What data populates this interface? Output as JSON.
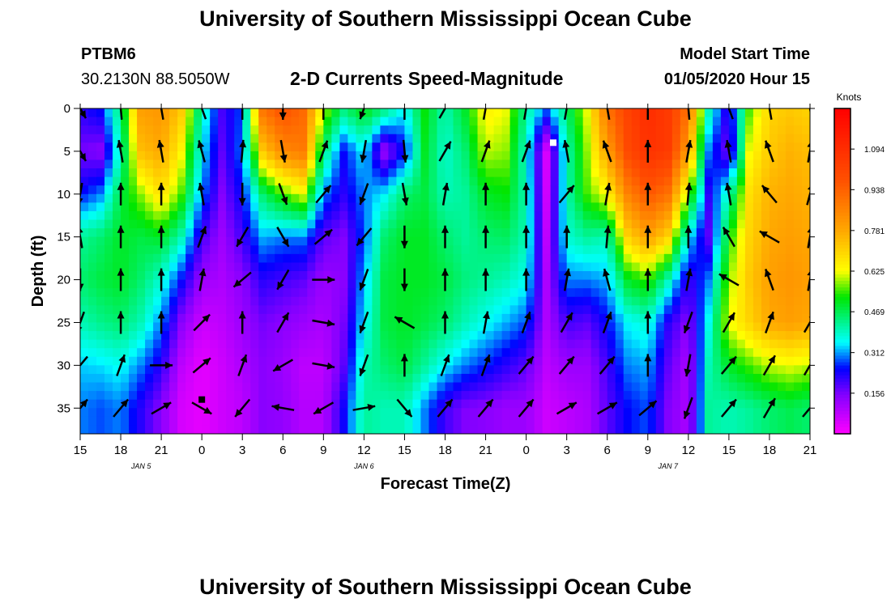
{
  "title_top": "University of Southern Mississippi Ocean Cube",
  "title_bottom": "University of Southern Mississippi Ocean Cube",
  "station": {
    "name": "PTBM6",
    "coords": "30.2130N 88.5050W"
  },
  "subtitle": "2-D Currents Speed-Magnitude",
  "model": {
    "label": "Model Start Time",
    "value": "01/05/2020 Hour 15"
  },
  "chart_data": {
    "type": "heatmap",
    "title": "2-D Currents Speed-Magnitude",
    "xlabel": "Forecast Time(Z)",
    "ylabel": "Depth (ft)",
    "x_hours": [
      0,
      54
    ],
    "x_tick_labels": [
      "15",
      "18",
      "21",
      "0",
      "3",
      "6",
      "9",
      "12",
      "15",
      "18",
      "21",
      "0",
      "3",
      "6",
      "9",
      "12",
      "15",
      "18",
      "21"
    ],
    "day_labels": [
      {
        "hour": 4.5,
        "text": "JAN 5"
      },
      {
        "hour": 21,
        "text": "JAN 6"
      },
      {
        "hour": 43.5,
        "text": "JAN 7"
      }
    ],
    "y_ticks": [
      0,
      5,
      10,
      15,
      20,
      25,
      30,
      35
    ],
    "ylim": [
      0,
      38
    ],
    "y_inverted": true,
    "colorbar": {
      "unit": "Knots",
      "ticks": [
        "1.094",
        "0.938",
        "0.781",
        "0.625",
        "0.469",
        "0.312",
        "0.156"
      ],
      "range": [
        0,
        1.25
      ]
    },
    "speed_columns": {
      "hours": [
        0,
        1.5,
        3,
        4.5,
        6,
        7.5,
        9,
        10.5,
        12,
        13.5,
        15,
        16.5,
        18,
        19.5,
        21,
        22.5,
        24,
        25.5,
        27,
        28.5,
        30,
        31.5,
        33,
        34.5,
        36,
        37.5,
        39,
        40.5,
        42,
        43.5,
        45,
        46.5,
        48,
        49.5,
        51,
        52.5,
        54
      ],
      "depths": [
        0,
        5,
        10,
        15,
        20,
        25,
        30,
        35,
        38
      ],
      "speed_knots": [
        [
          0.22,
          0.16,
          0.25,
          0.42,
          0.45,
          0.4,
          0.33,
          0.3,
          0.3
        ],
        [
          0.26,
          0.14,
          0.3,
          0.45,
          0.48,
          0.43,
          0.34,
          0.28,
          0.28
        ],
        [
          0.45,
          0.4,
          0.48,
          0.5,
          0.5,
          0.45,
          0.36,
          0.3,
          0.3
        ],
        [
          0.8,
          0.74,
          0.58,
          0.48,
          0.45,
          0.4,
          0.3,
          0.22,
          0.22
        ],
        [
          0.82,
          0.78,
          0.68,
          0.5,
          0.38,
          0.3,
          0.22,
          0.14,
          0.14
        ],
        [
          0.72,
          0.64,
          0.55,
          0.4,
          0.25,
          0.14,
          0.08,
          0.05,
          0.05
        ],
        [
          0.4,
          0.35,
          0.3,
          0.2,
          0.12,
          0.06,
          0.03,
          0.03,
          0.03
        ],
        [
          0.2,
          0.18,
          0.15,
          0.12,
          0.1,
          0.08,
          0.06,
          0.06,
          0.06
        ],
        [
          0.28,
          0.3,
          0.25,
          0.2,
          0.14,
          0.12,
          0.1,
          0.08,
          0.08
        ],
        [
          0.9,
          0.72,
          0.45,
          0.32,
          0.22,
          0.16,
          0.14,
          0.14,
          0.14
        ],
        [
          0.98,
          0.85,
          0.55,
          0.3,
          0.2,
          0.14,
          0.12,
          0.13,
          0.13
        ],
        [
          0.92,
          0.88,
          0.62,
          0.3,
          0.18,
          0.12,
          0.08,
          0.09,
          0.09
        ],
        [
          0.6,
          0.45,
          0.3,
          0.18,
          0.12,
          0.1,
          0.08,
          0.09,
          0.09
        ],
        [
          0.45,
          0.25,
          0.22,
          0.15,
          0.14,
          0.16,
          0.18,
          0.24,
          0.24
        ],
        [
          0.52,
          0.35,
          0.3,
          0.28,
          0.32,
          0.35,
          0.4,
          0.42,
          0.42
        ],
        [
          0.45,
          0.12,
          0.35,
          0.45,
          0.48,
          0.48,
          0.45,
          0.4,
          0.4
        ],
        [
          0.35,
          0.25,
          0.45,
          0.5,
          0.5,
          0.5,
          0.48,
          0.4,
          0.4
        ],
        [
          0.52,
          0.5,
          0.48,
          0.5,
          0.5,
          0.48,
          0.42,
          0.3,
          0.3
        ],
        [
          0.4,
          0.38,
          0.4,
          0.45,
          0.48,
          0.45,
          0.35,
          0.2,
          0.2
        ],
        [
          0.5,
          0.45,
          0.42,
          0.42,
          0.44,
          0.4,
          0.3,
          0.15,
          0.15
        ],
        [
          0.65,
          0.6,
          0.5,
          0.45,
          0.42,
          0.36,
          0.26,
          0.14,
          0.14
        ],
        [
          0.62,
          0.58,
          0.52,
          0.46,
          0.4,
          0.32,
          0.22,
          0.12,
          0.12
        ],
        [
          0.42,
          0.38,
          0.4,
          0.4,
          0.36,
          0.28,
          0.18,
          0.12,
          0.12
        ],
        [
          0.3,
          0.05,
          0.06,
          0.08,
          0.1,
          0.1,
          0.08,
          0.06,
          0.06
        ],
        [
          0.45,
          0.4,
          0.4,
          0.38,
          0.3,
          0.2,
          0.12,
          0.08,
          0.08
        ],
        [
          0.62,
          0.58,
          0.55,
          0.42,
          0.3,
          0.18,
          0.12,
          0.1,
          0.1
        ],
        [
          0.9,
          0.8,
          0.64,
          0.4,
          0.32,
          0.25,
          0.2,
          0.18,
          0.18
        ],
        [
          1.02,
          1.0,
          0.86,
          0.7,
          0.5,
          0.35,
          0.3,
          0.25,
          0.25
        ],
        [
          1.1,
          1.08,
          0.96,
          0.8,
          0.55,
          0.38,
          0.32,
          0.28,
          0.28
        ],
        [
          1.05,
          1.05,
          0.9,
          0.7,
          0.4,
          0.22,
          0.18,
          0.15,
          0.15
        ],
        [
          0.9,
          0.8,
          0.58,
          0.35,
          0.2,
          0.14,
          0.1,
          0.1,
          0.1
        ],
        [
          0.4,
          0.3,
          0.22,
          0.18,
          0.3,
          0.36,
          0.4,
          0.42,
          0.42
        ],
        [
          0.2,
          0.15,
          0.4,
          0.52,
          0.58,
          0.62,
          0.5,
          0.4,
          0.4
        ],
        [
          0.55,
          0.62,
          0.68,
          0.7,
          0.72,
          0.7,
          0.55,
          0.42,
          0.42
        ],
        [
          0.7,
          0.72,
          0.76,
          0.78,
          0.8,
          0.78,
          0.6,
          0.45,
          0.45
        ],
        [
          0.72,
          0.76,
          0.78,
          0.8,
          0.82,
          0.8,
          0.62,
          0.47,
          0.47
        ],
        [
          0.7,
          0.74,
          0.76,
          0.78,
          0.8,
          0.78,
          0.6,
          0.45,
          0.45
        ]
      ]
    },
    "vectors": {
      "hours": [
        0,
        3,
        6,
        9,
        12,
        15,
        18,
        21,
        24,
        27,
        30,
        33,
        36,
        39,
        42,
        45,
        48,
        51,
        54
      ],
      "depths": [
        0,
        5,
        10,
        15,
        20,
        25,
        30,
        35
      ],
      "direction_deg": [
        [
          150,
          355,
          350,
          340,
          0,
          180,
          0,
          200,
          0,
          30,
          10,
          10,
          10,
          350,
          0,
          355,
          340,
          350,
          350
        ],
        [
          150,
          350,
          350,
          345,
          5,
          170,
          20,
          190,
          175,
          30,
          20,
          20,
          350,
          340,
          0,
          10,
          350,
          340,
          10
        ],
        [
          190,
          0,
          0,
          350,
          180,
          160,
          40,
          200,
          170,
          10,
          0,
          0,
          40,
          10,
          0,
          5,
          350,
          320,
          15
        ],
        [
          350,
          0,
          0,
          20,
          210,
          150,
          50,
          220,
          180,
          0,
          0,
          0,
          0,
          5,
          0,
          0,
          330,
          300,
          10
        ],
        [
          180,
          0,
          0,
          10,
          230,
          210,
          90,
          200,
          180,
          0,
          0,
          0,
          10,
          345,
          0,
          10,
          300,
          340,
          10
        ],
        [
          200,
          0,
          0,
          45,
          0,
          30,
          100,
          200,
          300,
          0,
          10,
          20,
          30,
          20,
          0,
          200,
          30,
          20,
          30
        ],
        [
          220,
          20,
          90,
          50,
          20,
          240,
          100,
          200,
          0,
          20,
          20,
          40,
          40,
          40,
          0,
          190,
          40,
          30,
          30
        ],
        [
          40,
          40,
          60,
          120,
          220,
          280,
          240,
          80,
          140,
          40,
          40,
          40,
          60,
          60,
          50,
          200,
          40,
          30,
          40
        ]
      ],
      "length_px": 28
    },
    "markers": [
      {
        "label": "white-square",
        "hour": 35,
        "depth": 4
      },
      {
        "label": "black-square",
        "hour": 9,
        "depth": 34
      }
    ]
  }
}
